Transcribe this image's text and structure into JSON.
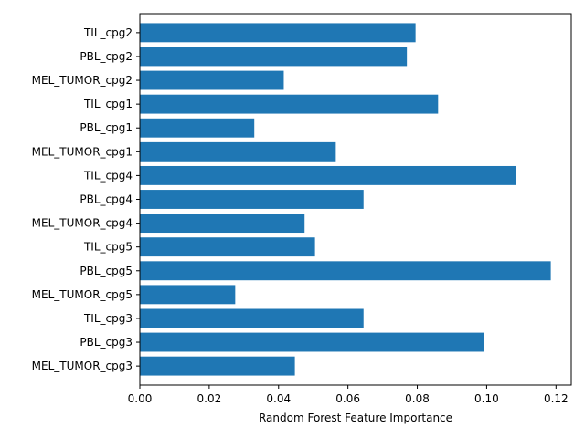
{
  "chart_data": {
    "type": "bar",
    "orientation": "horizontal",
    "categories": [
      "TIL_cpg2",
      "PBL_cpg2",
      "MEL_TUMOR_cpg2",
      "TIL_cpg1",
      "PBL_cpg1",
      "MEL_TUMOR_cpg1",
      "TIL_cpg4",
      "PBL_cpg4",
      "MEL_TUMOR_cpg4",
      "TIL_cpg5",
      "PBL_cpg5",
      "MEL_TUMOR_cpg5",
      "TIL_cpg3",
      "PBL_cpg3",
      "MEL_TUMOR_cpg3"
    ],
    "values": [
      0.0795,
      0.077,
      0.0415,
      0.086,
      0.033,
      0.0565,
      0.1085,
      0.0645,
      0.0475,
      0.0505,
      0.1185,
      0.0275,
      0.0645,
      0.0992,
      0.0447
    ],
    "title": "",
    "xlabel": "Random Forest Feature Importance",
    "ylabel": "",
    "xlim": [
      0,
      0.1244
    ],
    "xticks": [
      0,
      0.02,
      0.04,
      0.06,
      0.08,
      0.1,
      0.12
    ],
    "xtick_labels": [
      "0.00",
      "0.02",
      "0.04",
      "0.06",
      "0.08",
      "0.10",
      "0.12"
    ],
    "grid": false,
    "legend": "none",
    "bar_color": "#1f77b4"
  }
}
